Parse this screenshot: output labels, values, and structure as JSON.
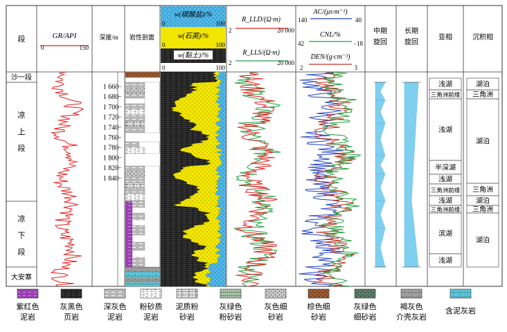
{
  "header": {
    "segment": "段",
    "gr_label": "GR/API",
    "gr_min": "0",
    "gr_max": "150",
    "depth_label": "深度/m",
    "lith_profile": "岩性剖面",
    "carbonate": "w(碳酸盐)/%",
    "quartz": "w(石英)/%",
    "clay": "w(黏土)/%",
    "pct_0": "0",
    "pct_100": "100",
    "rlld": "R_LLD/(Ω·m)",
    "rlls": "R_LLS/(Ω·m)",
    "res_min": "2",
    "res_max": "20 000",
    "ac": "AC/(μs·m⁻¹)",
    "ac_min": "140",
    "ac_max": "40",
    "cnl": "CNL/%",
    "cnl_min": "42",
    "cnl_max": "−18",
    "den": "DEN/(g·cm⁻³)",
    "den_min": "2",
    "den_max": "3",
    "mid_cycle": "中期旋回",
    "long_cycle": "长期旋回",
    "subfacies": "亚相",
    "facies": "沉积相"
  },
  "segments": [
    {
      "label": "沙一段"
    },
    {
      "label": "凉上段"
    },
    {
      "label": "凉下段"
    },
    {
      "label": "大安寨"
    }
  ],
  "depths": [
    "1 660",
    "1 680",
    "1 700",
    "1 720",
    "1 740",
    "1 760",
    "1 780",
    "1 800",
    "1 820",
    "1 840"
  ],
  "subfacies": [
    "浅湖",
    "三角洲前缘",
    "浅湖",
    "半深湖",
    "浅湖",
    "三角洲前缘",
    "浅湖",
    "三角洲前缘",
    "滨湖",
    "浅湖"
  ],
  "facies": [
    "湖泊",
    "三角洲",
    "湖泊",
    "三角洲",
    "湖泊",
    "三角洲",
    "湖泊"
  ],
  "legend": [
    {
      "name": "紫红色泥岩"
    },
    {
      "name": "灰黑色页岩"
    },
    {
      "name": "深灰色泥岩"
    },
    {
      "name": "粉砂质泥岩"
    },
    {
      "name": "泥质粉砂岩"
    },
    {
      "name": "灰绿色粉砂岩"
    },
    {
      "name": "灰色细砂岩"
    },
    {
      "name": "棕色细砂岩"
    },
    {
      "name": "灰绿色细砂岩"
    },
    {
      "name": "褐灰色介壳灰岩"
    },
    {
      "name": "含泥灰岩"
    }
  ],
  "colors": {
    "gr": "#e02020",
    "rlld": "#e02020",
    "rlls": "#20a040",
    "ac": "#2040c0",
    "cnl": "#20a040",
    "den": "#c03020",
    "quartz": "#f2e500",
    "clay": "#222222",
    "carbonate": "#4fb6e6",
    "cycle": "#7fd0f0"
  }
}
